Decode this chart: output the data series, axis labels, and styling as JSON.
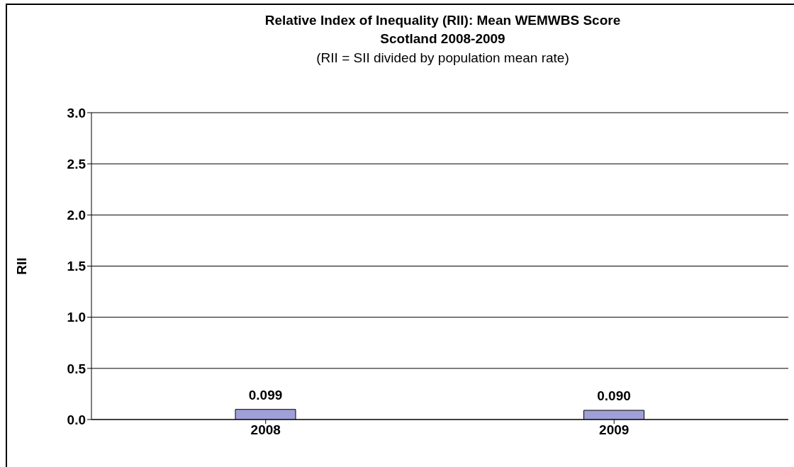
{
  "chart_data": {
    "type": "bar",
    "title": "Relative Index of Inequality (RII): Mean WEMWBS Score\nScotland 2008-2009",
    "subtitle": "(RII = SII divided by population mean rate)",
    "ylabel": "RII",
    "categories": [
      "2008",
      "2009"
    ],
    "values": [
      0.099,
      0.09
    ],
    "value_labels": [
      "0.099",
      "0.090"
    ],
    "color": "#a0a0d8",
    "ylim": [
      0,
      3
    ],
    "yticks": [
      {
        "value": 0,
        "label": "0.0"
      },
      {
        "value": 0.5,
        "label": "0.5"
      },
      {
        "value": 1,
        "label": "1.0"
      },
      {
        "value": 1.5,
        "label": "1.5"
      },
      {
        "value": 2,
        "label": "2.0"
      },
      {
        "value": 2.5,
        "label": "2.5"
      },
      {
        "value": 3,
        "label": "3.0"
      }
    ],
    "grid": "y",
    "legend": false
  }
}
